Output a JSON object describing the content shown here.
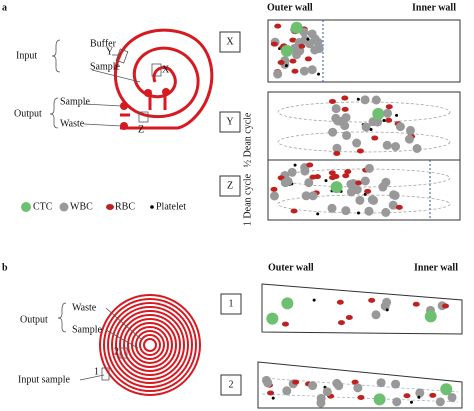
{
  "panel_a": {
    "label": "a",
    "outer_wall": "Outer wall",
    "inner_wall": "Inner wall",
    "input": "Input",
    "input_buffer": "Buffer",
    "input_sample": "Sample",
    "marker_y": "Y",
    "marker_x": "X",
    "output": "Output",
    "output_sample": "Sample",
    "output_waste": "Waste",
    "marker_z": "Z",
    "boxes": [
      "X",
      "Y",
      "Z"
    ],
    "half_cycle": "½ Dean cycle",
    "full_cycle": "1 Dean cycle",
    "legend": [
      "CTC",
      "WBC",
      "RBC",
      "Platelet"
    ]
  },
  "panel_b": {
    "label": "b",
    "outer_wall": "Outer wall",
    "inner_wall": "Inner wall",
    "output": "Output",
    "output_waste": "Waste",
    "output_sample": "Sample",
    "input_sample": "Input sample",
    "marker_1": "1",
    "marker_2": "2",
    "boxes": [
      "1",
      "2"
    ]
  }
}
